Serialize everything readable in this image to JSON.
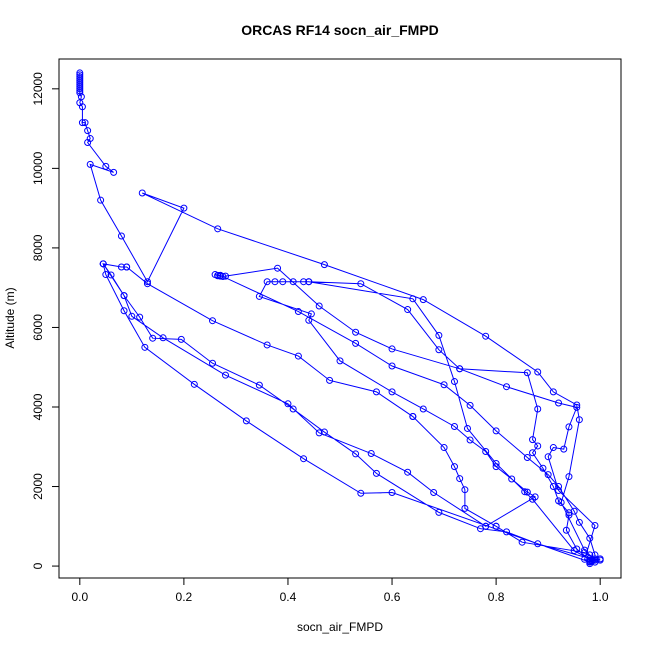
{
  "chart_data": {
    "type": "line",
    "title": "ORCAS RF14 socn_air_FMPD",
    "xlabel": "socn_air_FMPD",
    "ylabel": "Altitude (m)",
    "xlim": [
      -0.04,
      1.04
    ],
    "ylim": [
      -300,
      12750
    ],
    "xticks": [
      0.0,
      0.2,
      0.4,
      0.6,
      0.8,
      1.0
    ],
    "xtick_labels": [
      "0.0",
      "0.2",
      "0.4",
      "0.6",
      "0.8",
      "1.0"
    ],
    "yticks": [
      0,
      2000,
      4000,
      6000,
      8000,
      10000,
      12000
    ],
    "ytick_labels": [
      "0",
      "2000",
      "4000",
      "6000",
      "8000",
      "10000",
      "12000"
    ],
    "grid": false,
    "series_color": "#0000ff",
    "marker": "open-circle",
    "series": [
      {
        "points": [
          [
            0.0,
            12400
          ],
          [
            0.0,
            12350
          ],
          [
            0.0,
            12300
          ],
          [
            0.0,
            12250
          ],
          [
            0.0,
            12200
          ],
          [
            0.0,
            12150
          ],
          [
            0.0,
            12100
          ],
          [
            0.0,
            12050
          ],
          [
            0.0,
            12000
          ],
          [
            0.0,
            11950
          ],
          [
            0.0,
            11900
          ],
          [
            0.003,
            11800
          ],
          [
            0.0,
            11650
          ],
          [
            0.005,
            11550
          ],
          [
            0.005,
            11150
          ],
          [
            0.01,
            11150
          ],
          [
            0.015,
            10950
          ],
          [
            0.02,
            10750
          ],
          [
            0.015,
            10650
          ],
          [
            0.05,
            10050
          ],
          [
            0.065,
            9900
          ],
          [
            0.02,
            10100
          ],
          [
            0.04,
            9200
          ],
          [
            0.08,
            8300
          ],
          [
            0.13,
            7150
          ],
          [
            0.2,
            9000
          ],
          [
            0.12,
            9380
          ],
          [
            0.265,
            8480
          ],
          [
            0.47,
            7580
          ],
          [
            0.66,
            6700
          ],
          [
            0.78,
            5780
          ],
          [
            0.88,
            4880
          ],
          [
            0.91,
            4380
          ],
          [
            0.955,
            4050
          ],
          [
            0.96,
            3680
          ],
          [
            0.94,
            2250
          ],
          [
            0.925,
            1600
          ],
          [
            0.97,
            400
          ],
          [
            0.98,
            280
          ],
          [
            0.99,
            150
          ],
          [
            0.98,
            100
          ],
          [
            0.6,
            1850
          ],
          [
            0.54,
            1830
          ],
          [
            0.43,
            2700
          ],
          [
            0.32,
            3650
          ],
          [
            0.22,
            4570
          ],
          [
            0.125,
            5500
          ],
          [
            0.085,
            6420
          ],
          [
            0.05,
            7330
          ],
          [
            0.045,
            7600
          ],
          [
            0.045,
            7600
          ],
          [
            0.06,
            7320
          ],
          [
            0.085,
            6800
          ],
          [
            0.115,
            6260
          ],
          [
            0.14,
            5730
          ],
          [
            0.195,
            5700
          ],
          [
            0.255,
            5100
          ],
          [
            0.345,
            4550
          ],
          [
            0.41,
            3950
          ],
          [
            0.47,
            3370
          ],
          [
            0.53,
            2820
          ],
          [
            0.57,
            2330
          ],
          [
            0.69,
            1350
          ],
          [
            0.77,
            940
          ],
          [
            0.82,
            860
          ],
          [
            0.88,
            560
          ],
          [
            0.98,
            190
          ],
          [
            1.0,
            150
          ],
          [
            0.985,
            130
          ],
          [
            0.95,
            390
          ],
          [
            0.87,
            1680
          ],
          [
            0.855,
            1870
          ],
          [
            0.8,
            2580
          ],
          [
            0.745,
            3460
          ],
          [
            0.72,
            4640
          ],
          [
            0.69,
            5800
          ],
          [
            0.64,
            6720
          ],
          [
            0.44,
            7150
          ],
          [
            0.43,
            7150
          ],
          [
            0.41,
            7150
          ],
          [
            0.39,
            7150
          ],
          [
            0.375,
            7150
          ],
          [
            0.36,
            7150
          ],
          [
            0.345,
            6780
          ],
          [
            0.445,
            6340
          ],
          [
            0.44,
            6180
          ],
          [
            0.5,
            5160
          ],
          [
            0.6,
            4380
          ],
          [
            0.66,
            3950
          ],
          [
            0.72,
            3510
          ],
          [
            0.75,
            3170
          ],
          [
            0.78,
            2880
          ],
          [
            0.8,
            2500
          ],
          [
            0.83,
            2190
          ],
          [
            0.86,
            1860
          ],
          [
            0.875,
            1740
          ],
          [
            0.78,
            1000
          ],
          [
            0.78,
            1000
          ],
          [
            0.68,
            1850
          ],
          [
            0.63,
            2360
          ],
          [
            0.56,
            2830
          ],
          [
            0.46,
            3350
          ],
          [
            0.4,
            4080
          ],
          [
            0.28,
            4800
          ],
          [
            0.16,
            5740
          ],
          [
            0.1,
            6280
          ],
          [
            0.085,
            6800
          ],
          [
            0.045,
            7600
          ],
          [
            0.08,
            7520
          ],
          [
            0.09,
            7520
          ],
          [
            0.09,
            7520
          ],
          [
            0.13,
            7100
          ],
          [
            0.255,
            6170
          ],
          [
            0.36,
            5560
          ],
          [
            0.42,
            5280
          ],
          [
            0.48,
            4670
          ],
          [
            0.57,
            4380
          ],
          [
            0.64,
            3760
          ],
          [
            0.64,
            3760
          ],
          [
            0.7,
            2980
          ],
          [
            0.72,
            2500
          ],
          [
            0.73,
            2200
          ],
          [
            0.74,
            1920
          ],
          [
            0.74,
            1450
          ],
          [
            0.8,
            1000
          ],
          [
            0.8,
            1000
          ],
          [
            0.85,
            600
          ],
          [
            0.97,
            340
          ],
          [
            0.99,
            180
          ],
          [
            1.0,
            180
          ],
          [
            0.98,
            150
          ],
          [
            0.955,
            430
          ],
          [
            0.935,
            900
          ],
          [
            0.94,
            1280
          ],
          [
            0.94,
            1340
          ],
          [
            0.92,
            1640
          ],
          [
            0.91,
            2000
          ],
          [
            0.89,
            2460
          ],
          [
            0.87,
            2850
          ],
          [
            0.88,
            3020
          ],
          [
            0.87,
            3180
          ],
          [
            0.88,
            3950
          ],
          [
            0.86,
            4860
          ],
          [
            0.73,
            4960
          ],
          [
            0.6,
            5460
          ],
          [
            0.53,
            5880
          ],
          [
            0.46,
            6540
          ],
          [
            0.38,
            7490
          ],
          [
            0.28,
            7290
          ],
          [
            0.275,
            7280
          ],
          [
            0.27,
            7290
          ],
          [
            0.265,
            7300
          ],
          [
            0.26,
            7330
          ],
          [
            0.27,
            7310
          ],
          [
            0.265,
            7310
          ],
          [
            0.27,
            7310
          ],
          [
            0.42,
            6400
          ],
          [
            0.53,
            5600
          ],
          [
            0.6,
            5030
          ],
          [
            0.7,
            4560
          ],
          [
            0.75,
            4040
          ],
          [
            0.8,
            3400
          ],
          [
            0.86,
            2730
          ],
          [
            0.9,
            2300
          ],
          [
            0.92,
            2000
          ],
          [
            0.95,
            1380
          ],
          [
            0.96,
            1100
          ],
          [
            0.98,
            700
          ],
          [
            0.99,
            280
          ],
          [
            0.99,
            100
          ],
          [
            0.98,
            60
          ],
          [
            0.98,
            120
          ],
          [
            0.97,
            170
          ],
          [
            0.99,
            1020
          ],
          [
            0.92,
            1900
          ],
          [
            0.9,
            2750
          ],
          [
            0.91,
            2980
          ],
          [
            0.93,
            2940
          ],
          [
            0.94,
            3500
          ],
          [
            0.955,
            3990
          ],
          [
            0.92,
            4100
          ],
          [
            0.82,
            4510
          ],
          [
            0.73,
            4960
          ],
          [
            0.69,
            5440
          ],
          [
            0.63,
            6450
          ],
          [
            0.54,
            7100
          ],
          [
            0.44,
            7150
          ]
        ]
      }
    ]
  }
}
